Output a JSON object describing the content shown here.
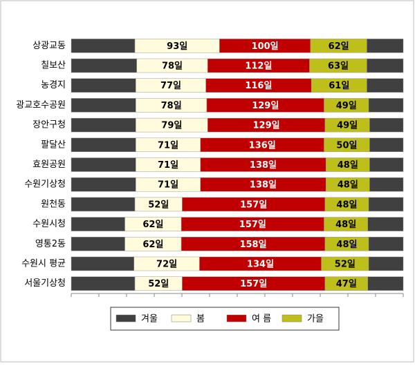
{
  "chart_data": {
    "type": "stacked-bar-horizontal",
    "categories": [
      "상광교동",
      "칠보산",
      "농경지",
      "광교호수공원",
      "장안구청",
      "팔달산",
      "효원공원",
      "수원기상청",
      "원천동",
      "수원시청",
      "영통2동",
      "수원시 평균",
      "서울기상청"
    ],
    "series": [
      {
        "name": "겨울",
        "color": "#404040",
        "values": [
          70,
          72,
          71,
          71,
          71,
          71,
          71,
          71,
          70,
          59,
          59,
          69,
          70
        ]
      },
      {
        "name": "봄",
        "color": "#fffbdc",
        "values": [
          93,
          78,
          77,
          78,
          79,
          71,
          71,
          71,
          52,
          62,
          62,
          72,
          52
        ],
        "value_labels": [
          "93일",
          "78일",
          "77일",
          "78일",
          "79일",
          "71일",
          "71일",
          "71일",
          "52일",
          "62일",
          "62일",
          "72일",
          "52일"
        ]
      },
      {
        "name": "여 름",
        "color": "#c00000",
        "values": [
          100,
          112,
          116,
          129,
          129,
          136,
          138,
          138,
          157,
          157,
          158,
          134,
          157
        ],
        "value_labels": [
          "100일",
          "112일",
          "116일",
          "129일",
          "129일",
          "136일",
          "138일",
          "138일",
          "157일",
          "157일",
          "158일",
          "134일",
          "157일"
        ]
      },
      {
        "name": "가을",
        "color": "#bfbf1c",
        "values": [
          62,
          63,
          61,
          49,
          49,
          50,
          48,
          48,
          48,
          48,
          48,
          52,
          47
        ],
        "value_labels": [
          "62일",
          "63일",
          "61일",
          "49일",
          "49일",
          "50일",
          "48일",
          "48일",
          "48일",
          "48일",
          "48일",
          "52일",
          "47일"
        ]
      },
      {
        "color": "#404040",
        "values": [
          40,
          40,
          40,
          38,
          37,
          37,
          37,
          37,
          38,
          39,
          38,
          38,
          39
        ]
      }
    ],
    "xlim": [
      0,
      365
    ],
    "xticks": [
      0,
      30.4,
      60.8,
      91.3,
      121.7,
      152.1,
      182.5,
      212.9,
      243.3,
      273.8,
      304.2,
      334.6,
      365
    ]
  }
}
